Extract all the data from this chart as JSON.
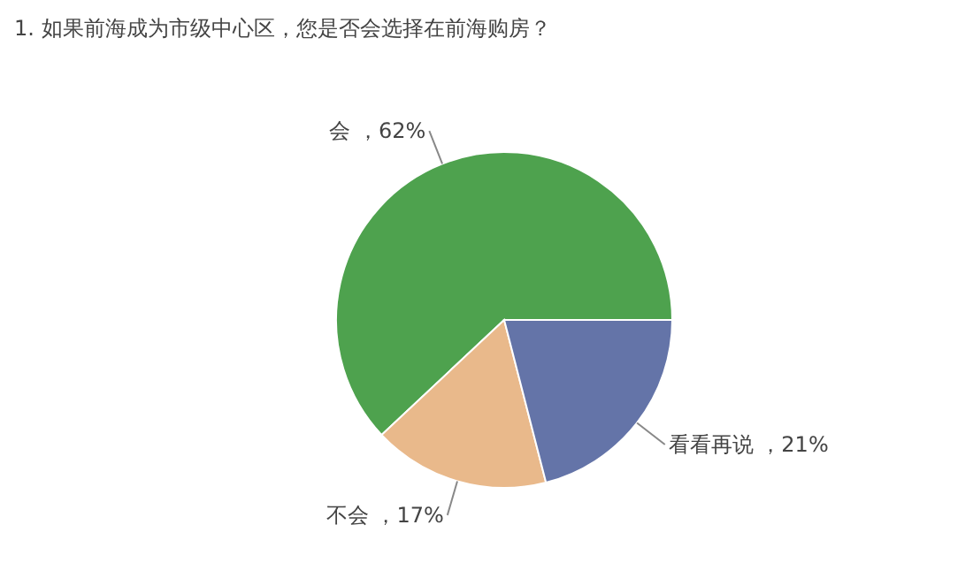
{
  "chart_data": {
    "type": "pie",
    "title": "1. 如果前海成为市级中心区，您是否会选择在前海购房？",
    "categories": [
      "会",
      "不会",
      "看看再说"
    ],
    "values": [
      62,
      17,
      21
    ],
    "value_labels": [
      "，62%",
      "，17%",
      "，21%"
    ],
    "colors": [
      "#4ea24e",
      "#e9b98b",
      "#6474a8"
    ]
  }
}
